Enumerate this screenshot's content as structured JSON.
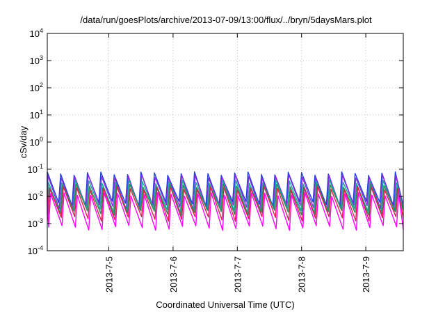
{
  "chart_data": {
    "type": "line",
    "title": "/data/run/goesPlots/archive/2013-07-09/13:00/flux/../bryn/5daysMars.plot",
    "xlabel": "Coordinated Universal Time (UTC)",
    "ylabel": "cSv/day",
    "yscale": "log",
    "ylim": [
      0.0001,
      10000
    ],
    "xlim": [
      "2013-07-04 01:00",
      "2013-07-09 14:00"
    ],
    "y_ticks": [
      {
        "base": "10",
        "exp": "4"
      },
      {
        "base": "10",
        "exp": "3"
      },
      {
        "base": "10",
        "exp": "2"
      },
      {
        "base": "10",
        "exp": "1"
      },
      {
        "base": "10",
        "exp": "0"
      },
      {
        "base": "10",
        "exp": "-1"
      },
      {
        "base": "10",
        "exp": "-2"
      },
      {
        "base": "10",
        "exp": "-3"
      },
      {
        "base": "10",
        "exp": "-4"
      }
    ],
    "x_ticks": [
      "2013-7-5",
      "2013-7-6",
      "2013-7-7",
      "2013-7-8",
      "2013-7-9"
    ],
    "grid": true,
    "oscillation_period_hours": 5,
    "series": [
      {
        "color": "#1f3fd8",
        "peak": 0.07,
        "trough": 0.0055,
        "phase_hours": 0.0
      },
      {
        "color": "#8a2be2",
        "peak": 0.055,
        "trough": 0.004,
        "phase_hours": 0.25
      },
      {
        "color": "#1aa7a0",
        "peak": 0.035,
        "trough": 0.003,
        "phase_hours": 0.5
      },
      {
        "color": "#2e8b57",
        "peak": 0.025,
        "trough": 0.0025,
        "phase_hours": 0.75
      },
      {
        "color": "#d9234f",
        "peak": 0.02,
        "trough": 0.0015,
        "phase_hours": 1.0
      },
      {
        "color": "#ff00ff",
        "peak": 0.012,
        "trough": 0.0007,
        "phase_hours": 1.25
      }
    ]
  }
}
